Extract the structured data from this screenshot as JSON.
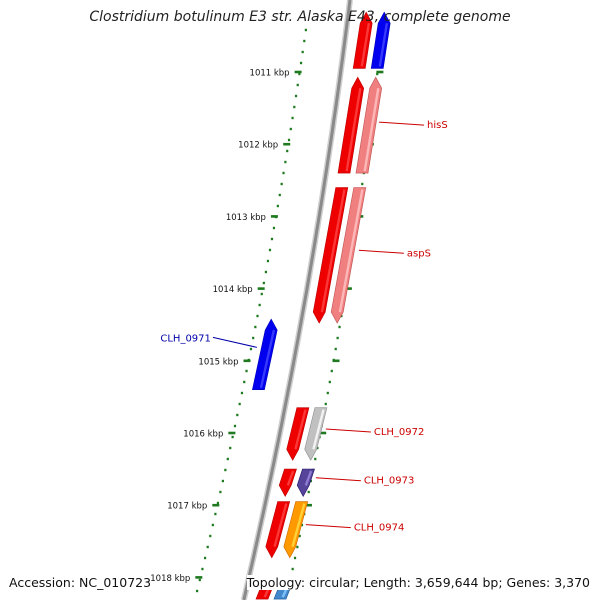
{
  "title": "Clostridium botulinum E3 str. Alaska E43, complete genome",
  "footer": {
    "accession": "Accession: NC_010723",
    "summary": "Topology: circular; Length: 3,659,644 bp; Genes: 3,370"
  },
  "colors": {
    "backbone": "#8a8a8a",
    "tick": "#1f7a1f",
    "label_red": "#cc0000",
    "label_blue": "#0000aa"
  },
  "ticks": [
    "1011 kbp",
    "1012 kbp",
    "1013 kbp",
    "1014 kbp",
    "1015 kbp",
    "1016 kbp",
    "1017 kbp",
    "1018 kbp"
  ],
  "genes": [
    {
      "name": "",
      "color": "#ee0000",
      "track": "CDS",
      "start_kbp": 1010.2,
      "end_kbp": 1010.95,
      "strand": "forward"
    },
    {
      "name": "",
      "color": "#0000ee",
      "track": "COG",
      "start_kbp": 1010.2,
      "end_kbp": 1010.95,
      "strand": "forward"
    },
    {
      "name": "hisS",
      "color": "#ee0000",
      "track": "CDS",
      "start_kbp": 1011.1,
      "end_kbp": 1012.4,
      "strand": "forward"
    },
    {
      "name": "",
      "color": "#f08080",
      "track": "COG",
      "start_kbp": 1011.1,
      "end_kbp": 1012.4,
      "strand": "forward"
    },
    {
      "name": "aspS",
      "color": "#ee0000",
      "track": "CDS",
      "start_kbp": 1012.6,
      "end_kbp": 1014.45,
      "strand": "reverse"
    },
    {
      "name": "",
      "color": "#f08080",
      "track": "COG",
      "start_kbp": 1012.6,
      "end_kbp": 1014.45,
      "strand": "reverse"
    },
    {
      "name": "CLH_0971",
      "color": "#0000ee",
      "track": "minus",
      "start_kbp": 1014.45,
      "end_kbp": 1015.4,
      "strand": "forward"
    },
    {
      "name": "CLH_0972",
      "color": "#ee0000",
      "track": "CDS",
      "start_kbp": 1015.65,
      "end_kbp": 1016.35,
      "strand": "reverse"
    },
    {
      "name": "",
      "color": "#c0c0c0",
      "track": "COG",
      "start_kbp": 1015.65,
      "end_kbp": 1016.35,
      "strand": "reverse"
    },
    {
      "name": "CLH_0973",
      "color": "#ee0000",
      "track": "CDS",
      "start_kbp": 1016.5,
      "end_kbp": 1016.85,
      "strand": "reverse"
    },
    {
      "name": "",
      "color": "#55449a",
      "track": "COG",
      "start_kbp": 1016.5,
      "end_kbp": 1016.85,
      "strand": "reverse"
    },
    {
      "name": "CLH_0974",
      "color": "#ee0000",
      "track": "CDS",
      "start_kbp": 1016.95,
      "end_kbp": 1017.7,
      "strand": "reverse"
    },
    {
      "name": "",
      "color": "#ff9900",
      "track": "COG",
      "start_kbp": 1016.95,
      "end_kbp": 1017.7,
      "strand": "reverse"
    },
    {
      "name": "",
      "color": "#ee0000",
      "track": "CDS",
      "start_kbp": 1018.0,
      "end_kbp": 1018.3,
      "strand": "forward"
    },
    {
      "name": "",
      "color": "#4488cc",
      "track": "COG",
      "start_kbp": 1018.0,
      "end_kbp": 1018.3,
      "strand": "forward"
    }
  ]
}
